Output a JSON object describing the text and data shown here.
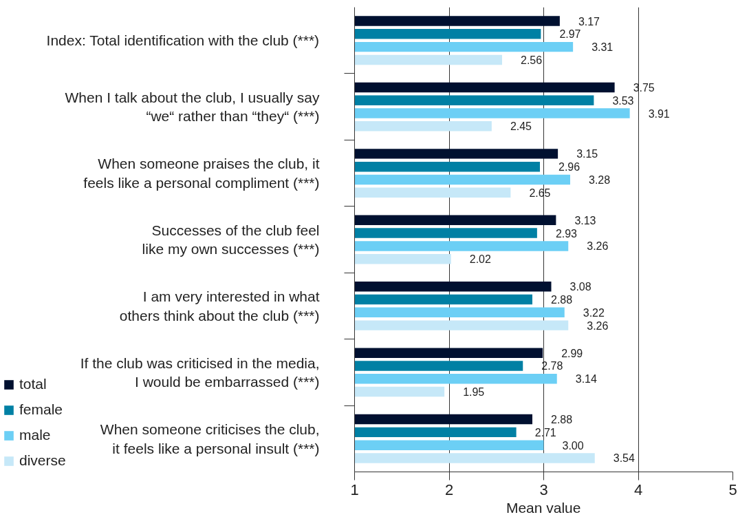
{
  "chart_data": {
    "type": "bar",
    "orientation": "horizontal",
    "categories": [
      "Index: Total identification with the club (***)",
      "When I talk about the club, I usually say\n“we“ rather than “they“ (***)",
      "When someone praises the club, it\nfeels like a personal compliment (***)",
      "Successes of the club feel\nlike my own successes (***)",
      "I am very interested in what\nothers think about the club (***)",
      "If the club was criticised in the media,\nI would be embarrassed (***)",
      "When someone criticises the club,\nit feels like a personal insult (***)"
    ],
    "series": [
      {
        "name": "total",
        "color": "#001030",
        "values": [
          3.17,
          3.75,
          3.15,
          3.13,
          3.08,
          2.99,
          2.88
        ],
        "value_labels": [
          "3.17",
          "3.75",
          "3.15",
          "3.13",
          "3.08",
          "2.99",
          "2.88"
        ]
      },
      {
        "name": "female",
        "color": "#0080a4",
        "values": [
          2.97,
          3.53,
          2.96,
          2.93,
          2.88,
          2.78,
          2.71
        ],
        "value_labels": [
          "2.97",
          "3.53",
          "2.96",
          "2.93",
          "2.88",
          "2.78",
          "2.71"
        ]
      },
      {
        "name": "male",
        "color": "#6ccff5",
        "values": [
          3.31,
          3.91,
          3.28,
          3.26,
          3.22,
          3.14,
          3.0
        ],
        "value_labels": [
          "3.31",
          "3.91",
          "3.28",
          "3.26",
          "3.22",
          "3.14",
          "3.00"
        ]
      },
      {
        "name": "diverse",
        "color": "#c6e8f8",
        "values": [
          2.56,
          2.45,
          2.65,
          2.02,
          3.26,
          1.95,
          3.54
        ],
        "value_labels": [
          "2.56",
          "2.45",
          "2.65",
          "2.02",
          "3.26",
          "1.95",
          "3.54"
        ]
      }
    ],
    "xlim": [
      1,
      5
    ],
    "xticks": [
      1,
      2,
      3,
      4,
      5
    ],
    "xlabel": "Mean value",
    "grid": "x",
    "legend": "bottom left"
  }
}
